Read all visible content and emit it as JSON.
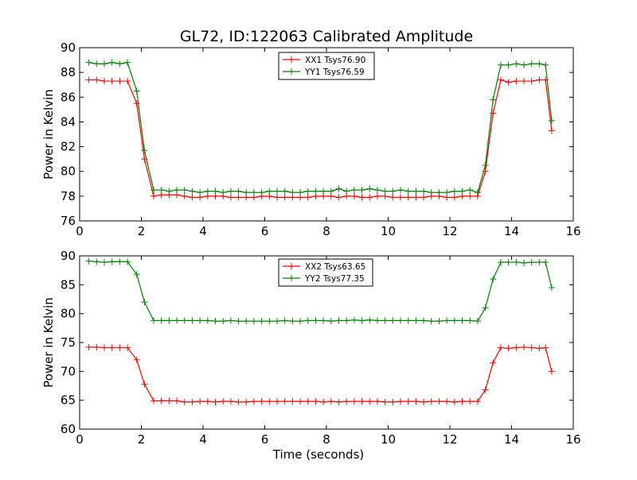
{
  "figure_title": "GL72, ID:122063 Calibrated Amplitude",
  "colors": {
    "red": "#ff0000",
    "green": "#008000"
  },
  "chart_data": [
    {
      "type": "line",
      "xlabel": "",
      "ylabel": "Power in Kelvin",
      "xlim": [
        0,
        16
      ],
      "ylim": [
        76,
        90
      ],
      "xticks": [
        "0",
        "2",
        "4",
        "6",
        "8",
        "10",
        "12",
        "14",
        "16"
      ],
      "yticks": [
        "76",
        "78",
        "80",
        "82",
        "84",
        "86",
        "88",
        "90"
      ],
      "grid": false,
      "legend_position": "top-center",
      "x": [
        0.3,
        0.55,
        0.8,
        1.05,
        1.3,
        1.55,
        1.85,
        2.1,
        2.4,
        2.65,
        2.9,
        3.15,
        3.4,
        3.65,
        3.9,
        4.15,
        4.4,
        4.65,
        4.9,
        5.15,
        5.4,
        5.65,
        5.9,
        6.15,
        6.4,
        6.65,
        6.9,
        7.15,
        7.4,
        7.65,
        7.9,
        8.15,
        8.4,
        8.65,
        8.9,
        9.15,
        9.4,
        9.65,
        9.9,
        10.15,
        10.4,
        10.65,
        10.9,
        11.15,
        11.4,
        11.65,
        11.9,
        12.15,
        12.4,
        12.65,
        12.9,
        13.15,
        13.4,
        13.65,
        13.9,
        14.15,
        14.4,
        14.65,
        14.9,
        15.1,
        15.3
      ],
      "series": [
        {
          "name": "XX1 Tsys76.90",
          "color": "#ff0000",
          "values": [
            87.4,
            87.4,
            87.3,
            87.3,
            87.3,
            87.3,
            85.5,
            81.0,
            78.0,
            78.1,
            78.1,
            78.1,
            78.0,
            77.9,
            77.9,
            78.0,
            78.0,
            78.0,
            77.9,
            77.9,
            77.9,
            77.9,
            78.0,
            78.0,
            77.9,
            77.9,
            77.9,
            77.9,
            77.9,
            78.0,
            78.0,
            78.0,
            77.9,
            78.0,
            78.0,
            77.9,
            77.9,
            78.0,
            78.0,
            77.9,
            77.9,
            77.9,
            77.9,
            77.9,
            78.0,
            78.0,
            77.9,
            77.9,
            78.0,
            78.0,
            78.0,
            80.0,
            84.7,
            87.4,
            87.2,
            87.3,
            87.3,
            87.3,
            87.4,
            87.4,
            83.3
          ]
        },
        {
          "name": "YY1 Tsys76.59",
          "color": "#008000",
          "values": [
            88.8,
            88.7,
            88.7,
            88.8,
            88.7,
            88.8,
            86.5,
            81.7,
            78.5,
            78.5,
            78.4,
            78.5,
            78.5,
            78.4,
            78.3,
            78.4,
            78.4,
            78.3,
            78.4,
            78.4,
            78.3,
            78.3,
            78.3,
            78.4,
            78.4,
            78.4,
            78.3,
            78.3,
            78.4,
            78.4,
            78.4,
            78.4,
            78.6,
            78.4,
            78.5,
            78.5,
            78.6,
            78.5,
            78.4,
            78.4,
            78.5,
            78.4,
            78.4,
            78.4,
            78.3,
            78.3,
            78.3,
            78.4,
            78.4,
            78.5,
            78.3,
            80.5,
            85.8,
            88.6,
            88.6,
            88.7,
            88.6,
            88.7,
            88.7,
            88.6,
            84.1
          ]
        }
      ]
    },
    {
      "type": "line",
      "xlabel": "Time (seconds)",
      "ylabel": "Power in Kelvin",
      "xlim": [
        0,
        16
      ],
      "ylim": [
        60,
        90
      ],
      "xticks": [
        "0",
        "2",
        "4",
        "6",
        "8",
        "10",
        "12",
        "14",
        "16"
      ],
      "yticks": [
        "60",
        "65",
        "70",
        "75",
        "80",
        "85",
        "90"
      ],
      "grid": false,
      "legend_position": "top-center",
      "x": [
        0.3,
        0.55,
        0.8,
        1.05,
        1.3,
        1.55,
        1.85,
        2.1,
        2.4,
        2.65,
        2.9,
        3.15,
        3.4,
        3.65,
        3.9,
        4.15,
        4.4,
        4.65,
        4.9,
        5.15,
        5.4,
        5.65,
        5.9,
        6.15,
        6.4,
        6.65,
        6.9,
        7.15,
        7.4,
        7.65,
        7.9,
        8.15,
        8.4,
        8.65,
        8.9,
        9.15,
        9.4,
        9.65,
        9.9,
        10.15,
        10.4,
        10.65,
        10.9,
        11.15,
        11.4,
        11.65,
        11.9,
        12.15,
        12.4,
        12.65,
        12.9,
        13.15,
        13.4,
        13.65,
        13.9,
        14.15,
        14.4,
        14.65,
        14.9,
        15.1,
        15.3
      ],
      "series": [
        {
          "name": "XX2 Tsys63.65",
          "color": "#ff0000",
          "values": [
            74.2,
            74.2,
            74.1,
            74.1,
            74.1,
            74.1,
            72.0,
            67.8,
            64.9,
            64.9,
            64.9,
            64.9,
            64.7,
            64.7,
            64.8,
            64.8,
            64.7,
            64.8,
            64.8,
            64.7,
            64.7,
            64.8,
            64.8,
            64.8,
            64.8,
            64.8,
            64.8,
            64.8,
            64.8,
            64.8,
            64.7,
            64.8,
            64.7,
            64.8,
            64.8,
            64.8,
            64.8,
            64.8,
            64.7,
            64.7,
            64.8,
            64.8,
            64.8,
            64.7,
            64.8,
            64.8,
            64.8,
            64.7,
            64.8,
            64.8,
            64.8,
            66.8,
            71.5,
            74.1,
            74.0,
            74.1,
            74.2,
            74.1,
            74.0,
            74.1,
            70.0
          ]
        },
        {
          "name": "YY2 Tsys77.35",
          "color": "#008000",
          "values": [
            89.1,
            89.0,
            88.9,
            89.0,
            89.0,
            89.0,
            86.8,
            82.0,
            78.8,
            78.8,
            78.8,
            78.8,
            78.8,
            78.8,
            78.8,
            78.8,
            78.7,
            78.7,
            78.8,
            78.7,
            78.7,
            78.7,
            78.7,
            78.7,
            78.7,
            78.8,
            78.7,
            78.7,
            78.8,
            78.8,
            78.8,
            78.7,
            78.8,
            78.8,
            78.9,
            78.8,
            78.9,
            78.8,
            78.8,
            78.8,
            78.8,
            78.8,
            78.8,
            78.8,
            78.7,
            78.7,
            78.8,
            78.8,
            78.8,
            78.8,
            78.7,
            81.0,
            86.0,
            88.9,
            88.9,
            88.9,
            88.8,
            88.9,
            88.9,
            88.9,
            84.5
          ]
        }
      ]
    }
  ]
}
